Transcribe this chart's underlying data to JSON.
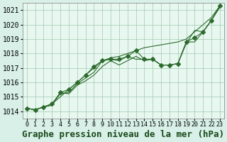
{
  "title": "Graphe pression niveau de la mer (hPa)",
  "background_color": "#d8f0e8",
  "grid_color": "#a0c8b0",
  "plot_bg": "#e8f8f0",
  "x_values": [
    0,
    1,
    2,
    3,
    4,
    5,
    6,
    7,
    8,
    9,
    10,
    11,
    12,
    13,
    14,
    15,
    16,
    17,
    18,
    19,
    20,
    21,
    22,
    23
  ],
  "line1": [
    1014.2,
    1014.1,
    1014.3,
    1014.4,
    1015.3,
    1015.2,
    1015.8,
    1016.1,
    1016.5,
    1017.1,
    1017.5,
    1017.2,
    1017.5,
    1017.8,
    1017.5,
    1017.6,
    1017.2,
    1017.2,
    1017.3,
    1018.7,
    1019.6,
    1019.5,
    1020.3,
    1021.2
  ],
  "line2": [
    1014.2,
    1014.1,
    1014.3,
    1014.5,
    1015.2,
    1015.3,
    1015.9,
    1016.3,
    1016.7,
    1017.5,
    1017.6,
    1017.5,
    1017.8,
    1017.6,
    1017.6,
    1017.6,
    1017.2,
    1017.2,
    1017.3,
    1018.8,
    1018.8,
    1019.5,
    1020.3,
    1021.3
  ],
  "line3": [
    1014.2,
    1014.1,
    1014.3,
    1014.5,
    1015.3,
    1015.5,
    1016.0,
    1016.5,
    1017.1,
    1017.5,
    1017.6,
    1017.6,
    1017.8,
    1018.2,
    1017.6,
    1017.6,
    1017.2,
    1017.2,
    1017.3,
    1018.8,
    1019.1,
    1019.5,
    1020.3,
    1021.3
  ],
  "line4_smooth": [
    1014.2,
    1014.1,
    1014.3,
    1014.5,
    1015.0,
    1015.5,
    1016.0,
    1016.5,
    1017.0,
    1017.5,
    1017.7,
    1017.8,
    1018.0,
    1018.2,
    1018.4,
    1018.5,
    1018.6,
    1018.7,
    1018.8,
    1019.0,
    1019.5,
    1020.0,
    1020.5,
    1021.3
  ],
  "ylim_min": 1013.5,
  "ylim_max": 1021.5,
  "yticks": [
    1014,
    1015,
    1016,
    1017,
    1018,
    1019,
    1020,
    1021
  ],
  "line_color": "#2d6b2d",
  "marker": "D",
  "marker_size": 3,
  "title_fontsize": 9,
  "tick_fontsize": 7
}
